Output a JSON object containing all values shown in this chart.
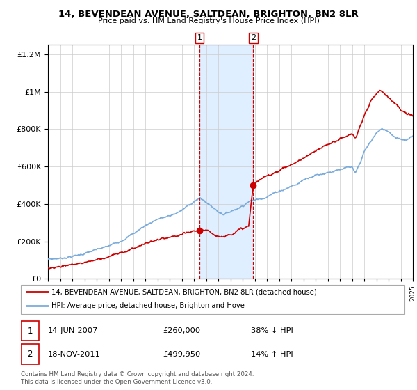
{
  "title": "14, BEVENDEAN AVENUE, SALTDEAN, BRIGHTON, BN2 8LR",
  "subtitle": "Price paid vs. HM Land Registry's House Price Index (HPI)",
  "legend_line1": "14, BEVENDEAN AVENUE, SALTDEAN, BRIGHTON, BN2 8LR (detached house)",
  "legend_line2": "HPI: Average price, detached house, Brighton and Hove",
  "transaction1_date": "14-JUN-2007",
  "transaction1_price": "£260,000",
  "transaction1_hpi": "38% ↓ HPI",
  "transaction2_date": "18-NOV-2011",
  "transaction2_price": "£499,950",
  "transaction2_hpi": "14% ↑ HPI",
  "footer": "Contains HM Land Registry data © Crown copyright and database right 2024.\nThis data is licensed under the Open Government Licence v3.0.",
  "red_color": "#cc0000",
  "blue_color": "#7aabdb",
  "shade_color": "#ddeeff",
  "ylim_max": 1250000,
  "hpi_ctrl_x": [
    1995,
    1995.5,
    1996,
    1997,
    1998,
    1999,
    2000,
    2001,
    2002,
    2003,
    2004,
    2005,
    2006,
    2007,
    2007.5,
    2008,
    2008.5,
    2009,
    2009.5,
    2010,
    2010.5,
    2011,
    2011.5,
    2012,
    2012.5,
    2013,
    2013.5,
    2014,
    2014.5,
    2015,
    2015.5,
    2016,
    2016.5,
    2017,
    2017.5,
    2018,
    2018.5,
    2019,
    2019.5,
    2020,
    2020.3,
    2020.7,
    2021,
    2021.5,
    2022,
    2022.5,
    2023,
    2023.5,
    2024,
    2024.5,
    2025
  ],
  "hpi_ctrl_y": [
    105000,
    107000,
    110000,
    120000,
    135000,
    155000,
    175000,
    205000,
    240000,
    285000,
    320000,
    335000,
    365000,
    415000,
    430000,
    410000,
    385000,
    360000,
    345000,
    360000,
    375000,
    390000,
    415000,
    420000,
    430000,
    440000,
    455000,
    470000,
    480000,
    495000,
    505000,
    530000,
    545000,
    555000,
    560000,
    570000,
    575000,
    580000,
    590000,
    595000,
    570000,
    620000,
    680000,
    730000,
    780000,
    800000,
    790000,
    760000,
    750000,
    740000,
    760000
  ],
  "red_ctrl_x": [
    1995,
    1995.5,
    1996,
    1997,
    1998,
    1999,
    2000,
    2001,
    2002,
    2003,
    2004,
    2005,
    2006,
    2007,
    2007.458,
    2007.7,
    2008,
    2008.5,
    2009,
    2009.5,
    2010,
    2010.5,
    2011,
    2011.5,
    2011.875,
    2012,
    2012.5,
    2013,
    2013.5,
    2014,
    2014.5,
    2015,
    2015.5,
    2016,
    2016.5,
    2017,
    2017.5,
    2018,
    2018.5,
    2019,
    2019.5,
    2020,
    2020.3,
    2020.7,
    2021,
    2021.3,
    2021.6,
    2022,
    2022.3,
    2022.6,
    2023,
    2023.5,
    2024,
    2024.5,
    2025
  ],
  "red_ctrl_y": [
    60000,
    63000,
    67000,
    76000,
    88000,
    103000,
    118000,
    138000,
    163000,
    188000,
    208000,
    218000,
    235000,
    255000,
    260000,
    262000,
    255000,
    245000,
    230000,
    225000,
    240000,
    255000,
    268000,
    280000,
    499950,
    510000,
    530000,
    550000,
    565000,
    580000,
    595000,
    610000,
    625000,
    645000,
    660000,
    680000,
    700000,
    720000,
    730000,
    750000,
    760000,
    775000,
    755000,
    820000,
    870000,
    910000,
    960000,
    990000,
    1010000,
    1000000,
    970000,
    940000,
    900000,
    880000,
    870000
  ]
}
